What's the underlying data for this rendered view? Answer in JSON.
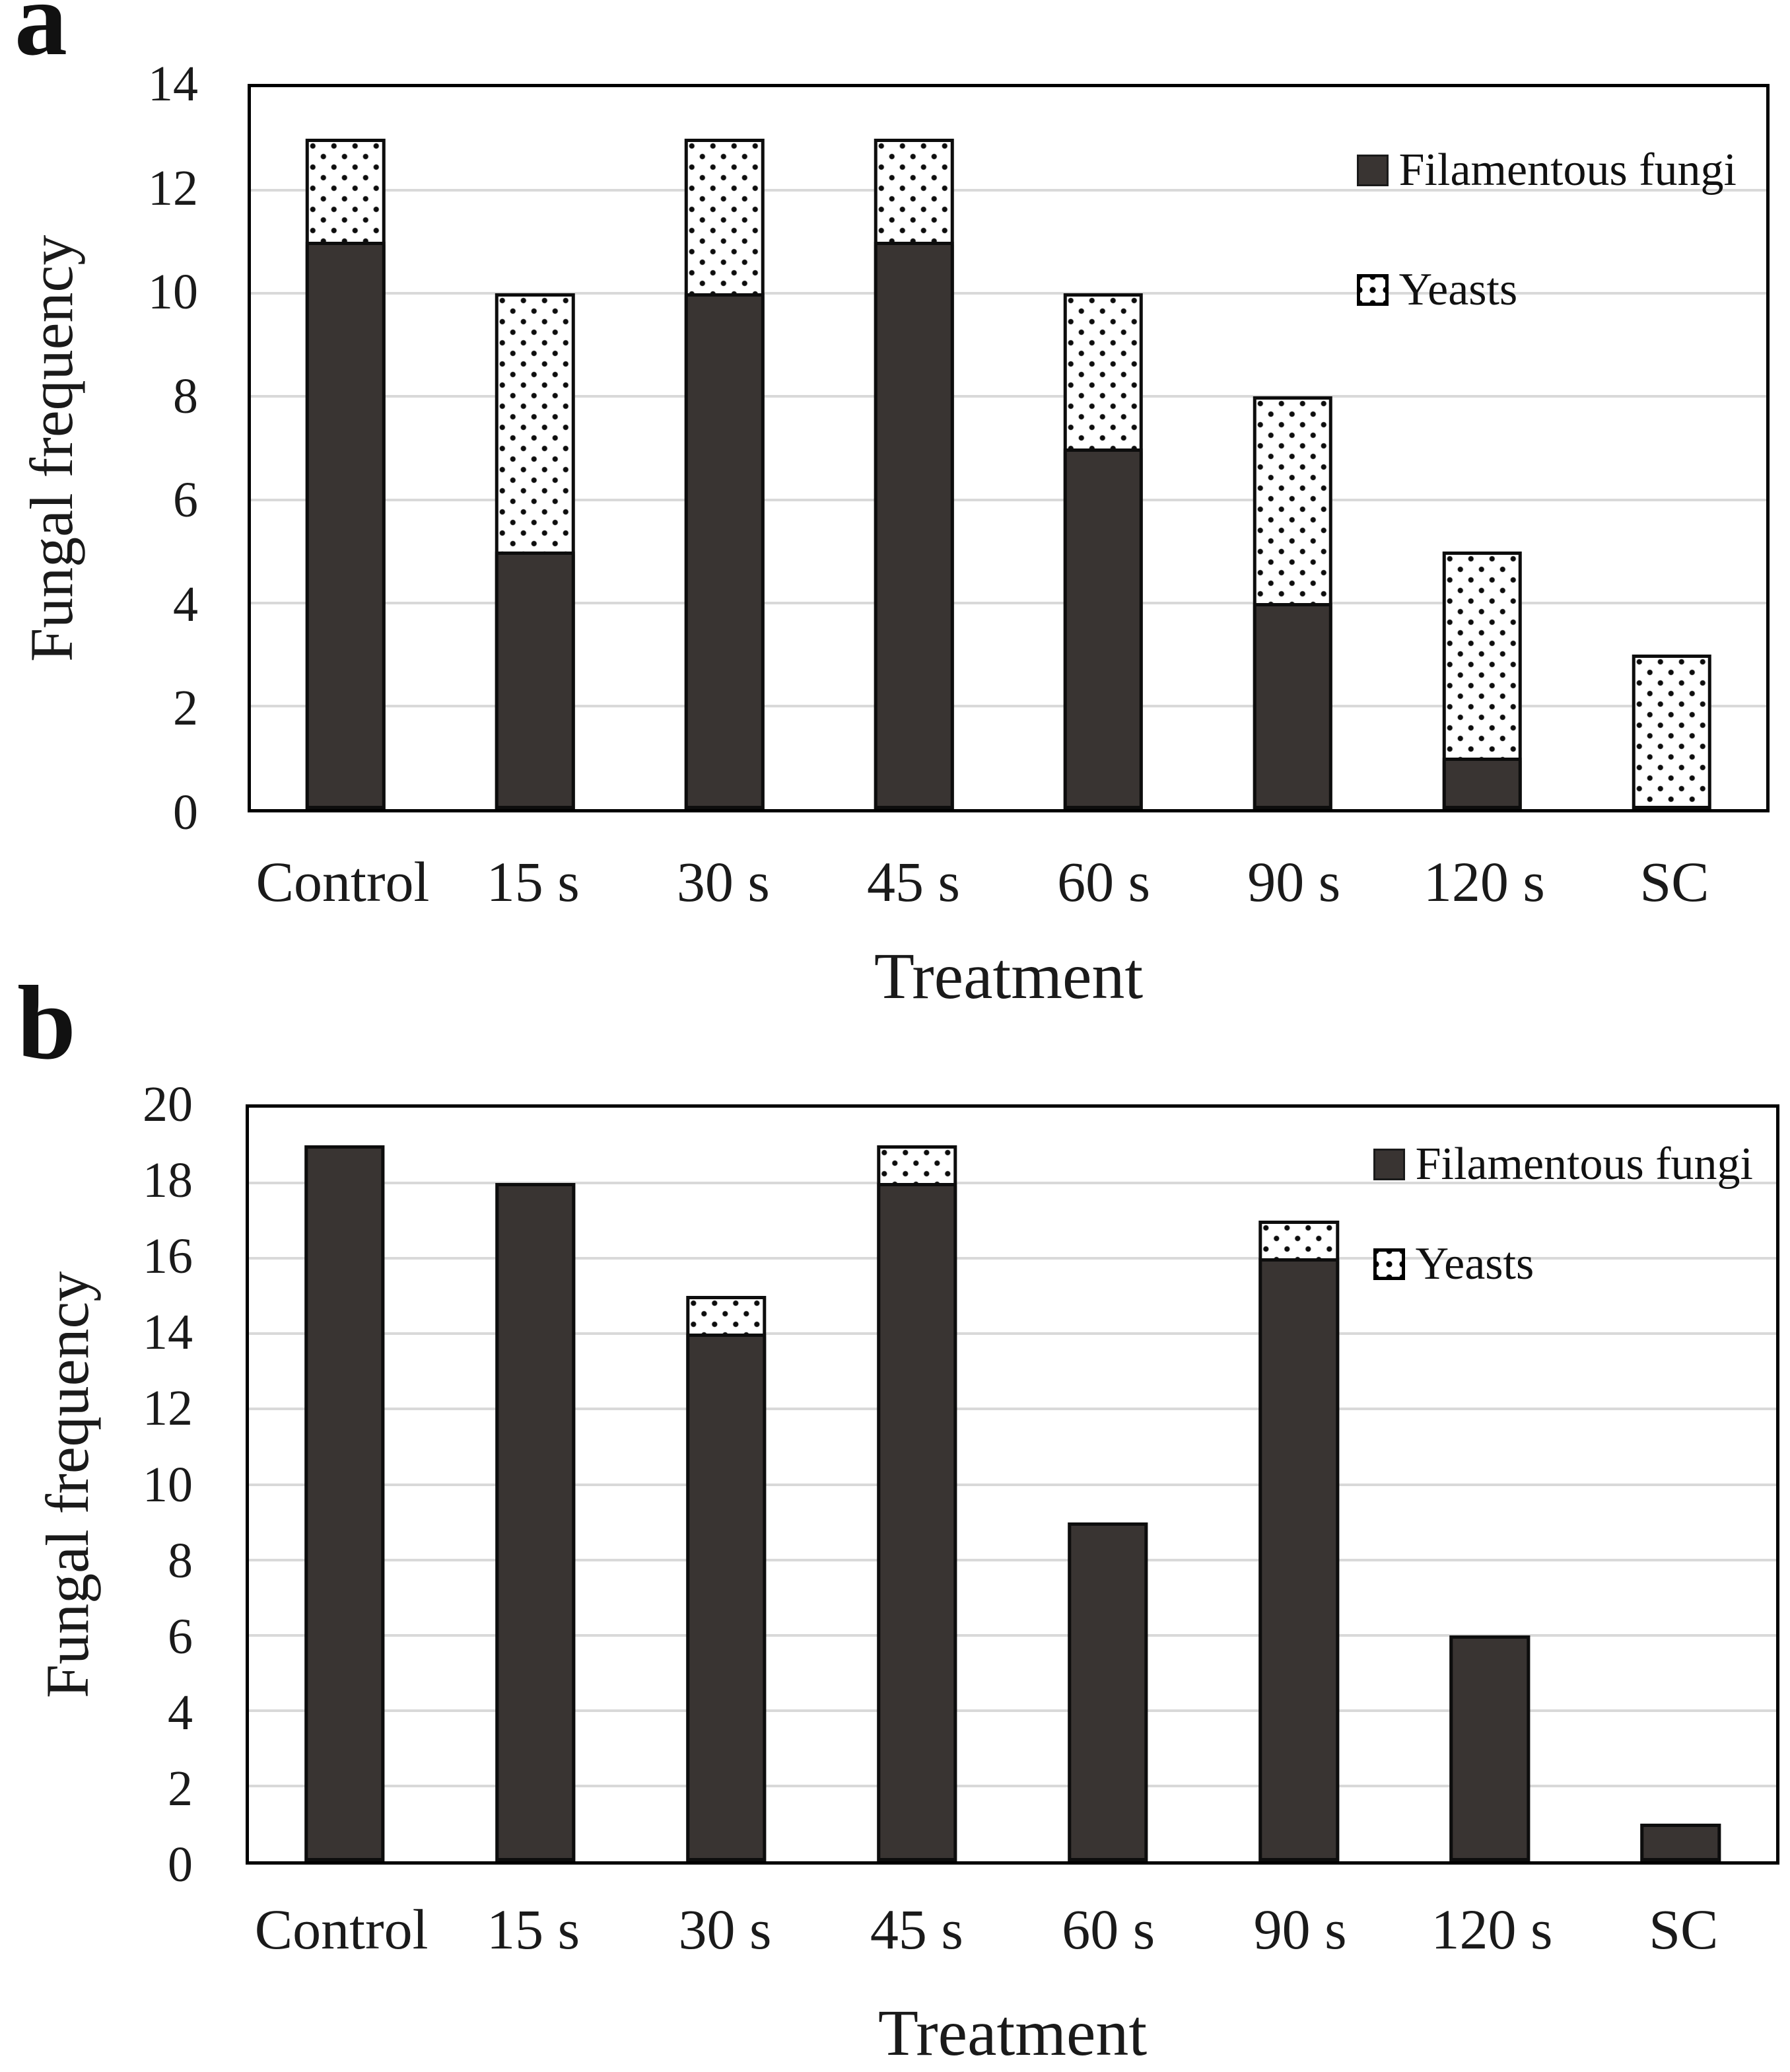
{
  "colors": {
    "filamentous_fill": "#393432",
    "bar_border": "#0d0d0d",
    "gridline": "#d9d9d9",
    "dot": "#000000",
    "axis_border": "#000000"
  },
  "chart_data": [
    {
      "type": "bar",
      "stacked": true,
      "panel_label": "a",
      "categories": [
        "Control",
        "15 s",
        "30 s",
        "45 s",
        "60 s",
        "90 s",
        "120 s",
        "SC"
      ],
      "series": [
        {
          "name": "Filamentous fungi",
          "values": [
            11,
            5,
            10,
            11,
            7,
            4,
            1,
            0
          ]
        },
        {
          "name": "Yeasts",
          "values": [
            2,
            5,
            3,
            2,
            3,
            4,
            4,
            3
          ]
        }
      ],
      "title": "",
      "xlabel": "Treatment",
      "ylabel": "Fungal frequency",
      "ylim": [
        0,
        14
      ],
      "ytick_step": 2,
      "grid": true,
      "legend_position": "top-right"
    },
    {
      "type": "bar",
      "stacked": true,
      "panel_label": "b",
      "categories": [
        "Control",
        "15 s",
        "30 s",
        "45 s",
        "60 s",
        "90 s",
        "120 s",
        "SC"
      ],
      "series": [
        {
          "name": "Filamentous fungi",
          "values": [
            19,
            18,
            14,
            18,
            9,
            16,
            6,
            1
          ]
        },
        {
          "name": "Yeasts",
          "values": [
            0,
            0,
            1,
            1,
            0,
            1,
            0,
            0
          ]
        }
      ],
      "title": "",
      "xlabel": "Treatment",
      "ylabel": "Fungal frequency",
      "ylim": [
        0,
        20
      ],
      "ytick_step": 2,
      "grid": true,
      "legend_position": "top-right"
    }
  ]
}
